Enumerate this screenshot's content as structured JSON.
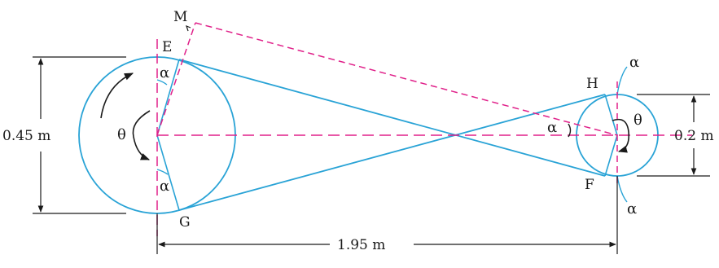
{
  "diagram": {
    "colors": {
      "belt": "#29a3d6",
      "construction": "#e0218a",
      "dimension": "#1a1a1a",
      "background": "#ffffff"
    },
    "points": {
      "M": "M",
      "E": "E",
      "G": "G",
      "H": "H",
      "F": "F"
    },
    "angles": {
      "alpha": "α",
      "theta": "θ"
    },
    "dimensions": {
      "large_pulley_diameter": "0.45 m",
      "small_pulley_diameter": "0.2 m",
      "center_distance": "1.95 m"
    }
  }
}
